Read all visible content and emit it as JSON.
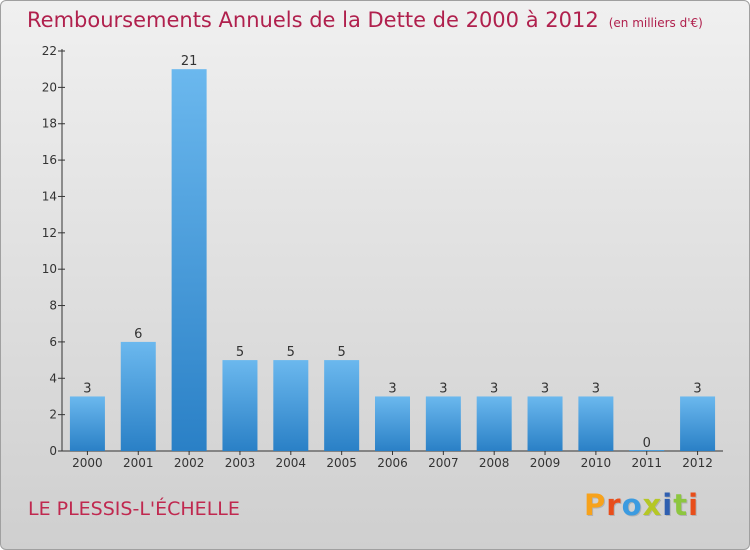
{
  "header": {
    "title": "Remboursements Annuels de la Dette de 2000 à 2012",
    "subtitle": "(en milliers d'€)"
  },
  "footer": {
    "place": "LE PLESSIS-L'ÉCHELLE",
    "logo": "Proxiti",
    "logo_colors": [
      "#f7a21b",
      "#e84e1b",
      "#3c9be0",
      "#b5c726",
      "#2f5fb0",
      "#8dc63f",
      "#e84e1b"
    ]
  },
  "colors": {
    "title": "#b0204d",
    "bar_top": "#6bb8ee",
    "bar_bottom": "#2a80c6",
    "axis": "#333333"
  },
  "chart_data": {
    "type": "bar",
    "title": "Remboursements Annuels de la Dette de 2000 à 2012",
    "subtitle": "(en milliers d'€)",
    "categories": [
      "2000",
      "2001",
      "2002",
      "2003",
      "2004",
      "2005",
      "2006",
      "2007",
      "2008",
      "2009",
      "2010",
      "2011",
      "2012"
    ],
    "values": [
      3,
      6,
      21,
      5,
      5,
      5,
      3,
      3,
      3,
      3,
      3,
      0,
      3
    ],
    "data_labels": [
      "3",
      "6",
      "21",
      "5",
      "5",
      "5",
      "3",
      "3",
      "3",
      "3",
      "3",
      "0",
      "3"
    ],
    "ylim": [
      0,
      22
    ],
    "yticks": [
      0,
      2,
      4,
      6,
      8,
      10,
      12,
      14,
      16,
      18,
      20,
      22
    ],
    "xlabel": "",
    "ylabel": "",
    "grid": false
  }
}
